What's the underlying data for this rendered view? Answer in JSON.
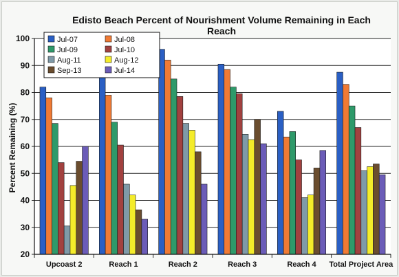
{
  "chart_data": {
    "type": "bar",
    "title_lines": [
      "Edisto Beach Percent of Nourishment Volume Remaining in Each",
      "Reach"
    ],
    "ylabel": "Percent Remaining (%)",
    "xlabel": "",
    "ylim": [
      20,
      100
    ],
    "yticks": [
      20,
      30,
      40,
      50,
      60,
      70,
      80,
      90,
      100
    ],
    "grid": true,
    "legend_position": "top-left",
    "categories": [
      "Upcoast 2",
      "Reach 1",
      "Reach 2",
      "Reach 3",
      "Reach 4",
      "Total Project Area"
    ],
    "series": [
      {
        "name": "Jul-07",
        "color": "#2a5fc4",
        "values": [
          82,
          86,
          96,
          90.5,
          73,
          87.5
        ]
      },
      {
        "name": "Jul-08",
        "color": "#f07a34",
        "values": [
          78,
          79,
          92,
          88.5,
          63.5,
          83
        ]
      },
      {
        "name": "Jul-09",
        "color": "#2e9a6a",
        "values": [
          68.5,
          69,
          85,
          82,
          65.5,
          75
        ]
      },
      {
        "name": "Jul-10",
        "color": "#a2413f",
        "values": [
          54,
          60.5,
          78.5,
          79.5,
          55,
          67
        ]
      },
      {
        "name": "Aug-11",
        "color": "#7f9aa8",
        "values": [
          30.5,
          46,
          68.5,
          64.5,
          41,
          51
        ]
      },
      {
        "name": "Aug-12",
        "color": "#f4ec2a",
        "values": [
          45.5,
          42,
          66,
          62.5,
          42,
          52.5
        ]
      },
      {
        "name": "Sep-13",
        "color": "#6b4d2e",
        "values": [
          54.5,
          36.5,
          58,
          70,
          52,
          53.5
        ]
      },
      {
        "name": "Jul-14",
        "color": "#6b5cb8",
        "values": [
          60,
          33,
          46,
          61,
          58.5,
          49.5
        ]
      }
    ]
  }
}
